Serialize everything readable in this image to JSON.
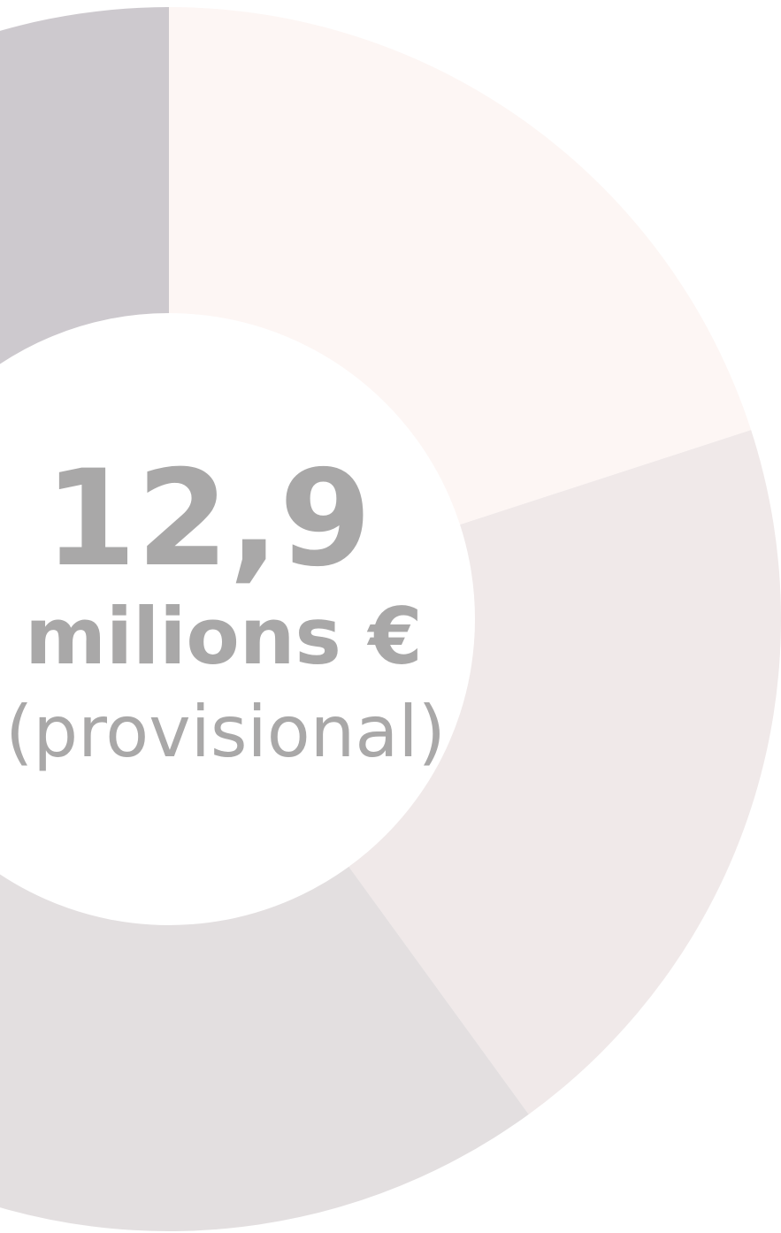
{
  "chart_data": {
    "type": "pie",
    "values": [
      20,
      20,
      35,
      25
    ],
    "colors": [
      "#fdf6f4",
      "#f0e9e9",
      "#e3dfe0",
      "#cdc9ce"
    ],
    "center_label": {
      "value": "12,9",
      "unit": "milions €",
      "note": "(provisional)"
    }
  }
}
